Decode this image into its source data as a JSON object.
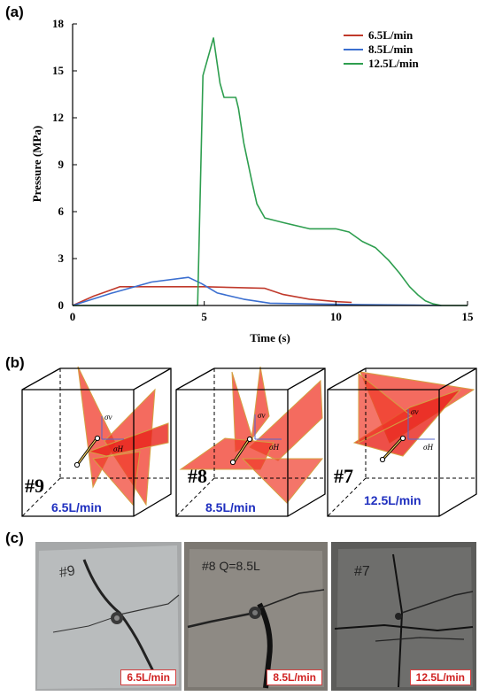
{
  "panels": {
    "a": "(a)",
    "b": "(b)",
    "c": "(c)"
  },
  "chart_data": {
    "type": "line",
    "xlabel": "Time (s)",
    "ylabel": "Pressure (MPa)",
    "xlim": [
      0,
      15
    ],
    "ylim": [
      0,
      18
    ],
    "xticks": [
      "0",
      "5",
      "10",
      "15"
    ],
    "yticks": [
      "0",
      "3",
      "6",
      "9",
      "12",
      "15",
      "18"
    ],
    "grid": false,
    "legend_position": "top-right",
    "series": [
      {
        "name": "6.5L/min",
        "color": "#c0392b",
        "x": [
          0,
          0.8,
          1.3,
          1.8,
          3,
          5,
          7.3,
          8,
          9,
          10,
          10.6
        ],
        "y": [
          0,
          0.6,
          0.9,
          1.2,
          1.2,
          1.2,
          1.1,
          0.7,
          0.4,
          0.25,
          0.2
        ]
      },
      {
        "name": "8.5L/min",
        "color": "#3b6fd0",
        "x": [
          0,
          1.5,
          3,
          4.4,
          4.9,
          5.5,
          6.5,
          7.5,
          9,
          11,
          13,
          14
        ],
        "y": [
          0,
          0.8,
          1.5,
          1.8,
          1.4,
          0.8,
          0.4,
          0.15,
          0.1,
          0.05,
          0.03,
          0
        ]
      },
      {
        "name": "12.5L/min",
        "color": "#2e9e4f",
        "x": [
          0,
          4.75,
          4.95,
          5.35,
          5.6,
          5.75,
          6.2,
          6.3,
          6.5,
          6.8,
          7.0,
          7.3,
          8,
          9,
          10,
          10.5,
          11,
          11.5,
          12,
          12.4,
          12.8,
          13.1,
          13.4,
          13.7,
          14,
          15
        ],
        "y": [
          0,
          0,
          14.7,
          17.1,
          14.2,
          13.3,
          13.3,
          12.6,
          10.4,
          8.0,
          6.5,
          5.6,
          5.3,
          4.9,
          4.9,
          4.7,
          4.1,
          3.7,
          2.9,
          2.1,
          1.2,
          0.7,
          0.3,
          0.1,
          0,
          0
        ]
      }
    ]
  },
  "cubes": [
    {
      "id": "#9",
      "rate": "6.5L/min",
      "sigma_v": "σv",
      "sigma_h": "σH"
    },
    {
      "id": "#8",
      "rate": "8.5L/min",
      "sigma_v": "σv",
      "sigma_h": "σH"
    },
    {
      "id": "#7",
      "rate": "12.5L/min",
      "sigma_v": "σv",
      "sigma_h": "σH"
    }
  ],
  "photos": [
    {
      "tag": "6.5L/min",
      "surface": "#b9bcbd"
    },
    {
      "tag": "8.5L/min",
      "surface": "#8e8a84"
    },
    {
      "tag": "12.5L/min",
      "surface": "#6e6e6c"
    }
  ]
}
